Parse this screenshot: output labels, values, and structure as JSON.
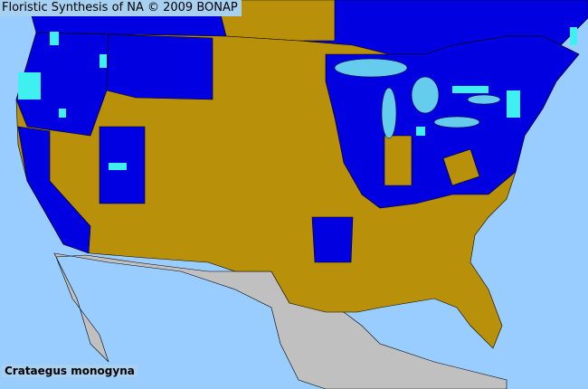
{
  "map": {
    "title": "Floristic Synthesis of NA © 2009 BONAP",
    "species": "Crataegus monogyna",
    "colors": {
      "ocean": "#99ccff",
      "absent_county": "#b8900a",
      "present_state": "#0000e0",
      "present_county": "#40f0f0",
      "outside_area": "#c0c0c0",
      "lakes": "#66ccee",
      "border": "#000000"
    }
  }
}
